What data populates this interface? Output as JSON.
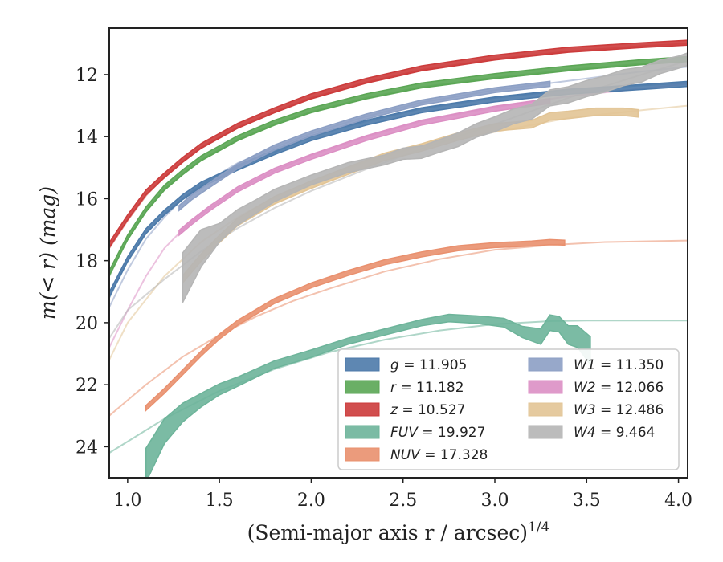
{
  "chart_data": {
    "type": "line",
    "title": "",
    "xlabel": "(Semi-major axis r / arcsec)",
    "xlabel_sup": "1/4",
    "ylabel": "m(< r) (mag)",
    "xlim": [
      0.9,
      4.05
    ],
    "ylim": [
      25.0,
      10.5
    ],
    "y_inverted": true,
    "xticks": [
      "1.0",
      "1.5",
      "2.0",
      "2.5",
      "3.0",
      "3.5",
      "4.0"
    ],
    "xtick_values": [
      1.0,
      1.5,
      2.0,
      2.5,
      3.0,
      3.5,
      4.0
    ],
    "yticks": [
      "12",
      "14",
      "16",
      "18",
      "20",
      "22",
      "24"
    ],
    "ytick_values": [
      12,
      14,
      16,
      18,
      20,
      22,
      24
    ],
    "grid": false,
    "legend_position": "lower-right",
    "legend_columns": 2,
    "series": [
      {
        "name": "g = 11.905",
        "label_var": "g",
        "label_val": "11.905",
        "color": "#4c7aaa",
        "model": {
          "x": [
            0.9,
            1.0,
            1.1,
            1.2,
            1.3,
            1.4,
            1.6,
            1.8,
            2.0,
            2.3,
            2.6,
            3.0,
            3.4,
            3.8,
            4.05
          ],
          "y": [
            19.2,
            18.0,
            17.1,
            16.5,
            16.0,
            15.6,
            15.0,
            14.5,
            14.0,
            13.5,
            13.1,
            12.75,
            12.5,
            12.35,
            12.27
          ]
        },
        "data": {
          "x": [
            0.9,
            1.0,
            1.1,
            1.2,
            1.3,
            1.4,
            1.6,
            1.8,
            2.0,
            2.3,
            2.6,
            3.0,
            3.4,
            3.8,
            4.05
          ],
          "y": [
            19.1,
            17.95,
            17.05,
            16.45,
            15.95,
            15.55,
            15.0,
            14.5,
            14.05,
            13.55,
            13.15,
            12.8,
            12.55,
            12.4,
            12.3
          ],
          "band": 0.08
        }
      },
      {
        "name": "r = 11.182",
        "label_var": "r",
        "label_val": "11.182",
        "color": "#5aa654",
        "model": {
          "x": [
            0.9,
            1.0,
            1.1,
            1.2,
            1.3,
            1.4,
            1.6,
            1.8,
            2.0,
            2.3,
            2.6,
            3.0,
            3.4,
            3.8,
            4.05
          ],
          "y": [
            18.5,
            17.3,
            16.4,
            15.7,
            15.2,
            14.75,
            14.1,
            13.6,
            13.2,
            12.75,
            12.4,
            12.1,
            11.85,
            11.65,
            11.55
          ]
        },
        "data": {
          "x": [
            0.9,
            1.0,
            1.1,
            1.2,
            1.3,
            1.4,
            1.6,
            1.8,
            2.0,
            2.3,
            2.6,
            3.0,
            3.4,
            3.8,
            4.05
          ],
          "y": [
            18.4,
            17.25,
            16.35,
            15.65,
            15.15,
            14.7,
            14.05,
            13.55,
            13.15,
            12.7,
            12.35,
            12.05,
            11.8,
            11.6,
            11.5
          ],
          "band": 0.08
        }
      },
      {
        "name": "z = 10.527",
        "label_var": "z",
        "label_val": "10.527",
        "color": "#cc3b3b",
        "model": {
          "x": [
            0.9,
            1.0,
            1.1,
            1.2,
            1.3,
            1.4,
            1.6,
            1.8,
            2.0,
            2.3,
            2.6,
            3.0,
            3.4,
            3.8,
            4.05
          ],
          "y": [
            17.6,
            16.7,
            15.9,
            15.3,
            14.8,
            14.35,
            13.7,
            13.2,
            12.75,
            12.25,
            11.85,
            11.5,
            11.25,
            11.08,
            11.0
          ]
        },
        "data": {
          "x": [
            0.9,
            1.0,
            1.1,
            1.2,
            1.3,
            1.4,
            1.6,
            1.8,
            2.0,
            2.3,
            2.6,
            3.0,
            3.4,
            3.8,
            4.05
          ],
          "y": [
            17.5,
            16.6,
            15.8,
            15.25,
            14.75,
            14.3,
            13.65,
            13.15,
            12.7,
            12.2,
            11.8,
            11.45,
            11.2,
            11.05,
            10.97
          ],
          "band": 0.08
        }
      },
      {
        "name": "FUV = 19.927",
        "label_var": "FUV",
        "label_val": "19.927",
        "color": "#6db49a",
        "model": {
          "x": [
            0.9,
            1.2,
            1.5,
            1.8,
            2.1,
            2.4,
            2.7,
            3.0,
            3.3,
            3.5,
            3.7,
            4.05
          ],
          "y": [
            24.2,
            23.1,
            22.2,
            21.5,
            20.95,
            20.55,
            20.25,
            20.05,
            19.95,
            19.93,
            19.93,
            19.93
          ]
        },
        "data": {
          "x": [
            1.1,
            1.2,
            1.3,
            1.4,
            1.5,
            1.6,
            1.8,
            2.0,
            2.2,
            2.4,
            2.6,
            2.75,
            2.9,
            3.05,
            3.15,
            3.25,
            3.3,
            3.35,
            3.4,
            3.45,
            3.52
          ],
          "y": [
            24.6,
            23.5,
            22.9,
            22.5,
            22.15,
            21.9,
            21.35,
            21.0,
            20.6,
            20.3,
            20.0,
            19.85,
            19.9,
            20.0,
            20.3,
            20.45,
            20.0,
            20.05,
            20.4,
            20.45,
            20.9
          ],
          "band": [
            0.55,
            0.4,
            0.3,
            0.22,
            0.18,
            0.15,
            0.12,
            0.12,
            0.1,
            0.1,
            0.1,
            0.12,
            0.12,
            0.14,
            0.18,
            0.25,
            0.25,
            0.25,
            0.3,
            0.35,
            0.45
          ]
        }
      },
      {
        "name": "NUV = 17.328",
        "label_var": "NUV",
        "label_val": "17.328",
        "color": "#e9906e",
        "model": {
          "x": [
            0.9,
            1.1,
            1.3,
            1.5,
            1.7,
            1.9,
            2.1,
            2.4,
            2.7,
            3.0,
            3.3,
            3.6,
            4.05
          ],
          "y": [
            23.0,
            22.0,
            21.1,
            20.4,
            19.8,
            19.3,
            18.9,
            18.35,
            17.95,
            17.65,
            17.5,
            17.4,
            17.35
          ]
        },
        "data": {
          "x": [
            1.1,
            1.2,
            1.3,
            1.4,
            1.5,
            1.6,
            1.8,
            2.0,
            2.2,
            2.4,
            2.6,
            2.8,
            3.0,
            3.2,
            3.3,
            3.38
          ],
          "y": [
            22.75,
            22.2,
            21.6,
            21.0,
            20.45,
            20.0,
            19.3,
            18.8,
            18.4,
            18.05,
            17.8,
            17.6,
            17.5,
            17.45,
            17.4,
            17.42
          ],
          "band": 0.08
        }
      },
      {
        "name": "W1 = 11.350",
        "label_var": "W1",
        "label_val": "11.350",
        "color": "#8c9fc4",
        "model": {
          "x": [
            0.9,
            1.0,
            1.1,
            1.2,
            1.3,
            1.4,
            1.6,
            1.8,
            2.0,
            2.3,
            2.6,
            3.0,
            3.4,
            3.8,
            4.05
          ],
          "y": [
            19.5,
            18.3,
            17.3,
            16.6,
            16.0,
            15.55,
            14.85,
            14.35,
            13.9,
            13.35,
            12.9,
            12.5,
            12.2,
            11.9,
            11.75
          ]
        },
        "data": {
          "x": [
            1.28,
            1.35,
            1.45,
            1.6,
            1.8,
            2.0,
            2.3,
            2.6,
            3.0,
            3.3
          ],
          "y": [
            16.3,
            15.95,
            15.55,
            14.95,
            14.35,
            13.9,
            13.35,
            12.9,
            12.5,
            12.3
          ],
          "band": 0.08
        }
      },
      {
        "name": "W2 = 12.066",
        "label_var": "W2",
        "label_val": "12.066",
        "color": "#dc8fc4",
        "model": {
          "x": [
            0.9,
            1.0,
            1.1,
            1.2,
            1.3,
            1.4,
            1.6,
            1.8,
            2.0,
            2.3,
            2.6,
            3.0,
            3.4,
            3.8,
            4.05
          ],
          "y": [
            20.8,
            19.6,
            18.5,
            17.6,
            17.0,
            16.5,
            15.7,
            15.1,
            14.6,
            14.0,
            13.5,
            13.05,
            12.7,
            12.45,
            12.3
          ]
        },
        "data": {
          "x": [
            1.28,
            1.35,
            1.45,
            1.6,
            1.8,
            2.0,
            2.3,
            2.6,
            3.0,
            3.3
          ],
          "y": [
            17.1,
            16.75,
            16.3,
            15.7,
            15.1,
            14.65,
            14.05,
            13.55,
            13.1,
            12.85
          ],
          "band": 0.08
        }
      },
      {
        "name": "W3 = 12.486",
        "label_var": "W3",
        "label_val": "12.486",
        "color": "#e2c495",
        "model": {
          "x": [
            0.9,
            1.0,
            1.2,
            1.4,
            1.6,
            1.8,
            2.0,
            2.3,
            2.6,
            3.0,
            3.4,
            3.8,
            4.05
          ],
          "y": [
            21.2,
            20.0,
            18.5,
            17.4,
            16.6,
            15.95,
            15.45,
            14.8,
            14.3,
            13.85,
            13.4,
            13.15,
            13.0
          ]
        },
        "data": {
          "x": [
            1.3,
            1.4,
            1.5,
            1.6,
            1.8,
            2.0,
            2.2,
            2.4,
            2.6,
            2.8,
            3.0,
            3.2,
            3.3,
            3.4,
            3.55,
            3.7,
            3.78
          ],
          "y": [
            18.6,
            17.9,
            17.3,
            16.75,
            16.05,
            15.55,
            15.1,
            14.65,
            14.35,
            14.0,
            13.7,
            13.6,
            13.35,
            13.3,
            13.2,
            13.2,
            13.25
          ],
          "band": 0.12
        }
      },
      {
        "name": "W4 = 9.464",
        "label_var": "W4",
        "label_val": "9.464",
        "color": "#b5b5b5",
        "model": {
          "x": [
            0.9,
            1.0,
            1.2,
            1.4,
            1.6,
            1.8,
            2.0,
            2.3,
            2.6,
            3.0,
            3.4,
            3.8,
            4.05
          ],
          "y": [
            20.5,
            19.6,
            18.6,
            17.7,
            16.95,
            16.3,
            15.75,
            15.05,
            14.4,
            13.6,
            12.75,
            12.0,
            11.55
          ]
        },
        "data": {
          "x": [
            1.3,
            1.4,
            1.5,
            1.6,
            1.7,
            1.8,
            1.9,
            2.0,
            2.2,
            2.4,
            2.5,
            2.6,
            2.7,
            2.8,
            2.9,
            3.0,
            3.1,
            3.2,
            3.3,
            3.4,
            3.5,
            3.6,
            3.7,
            3.8,
            3.9,
            4.0,
            4.05
          ],
          "y": [
            18.55,
            17.6,
            17.1,
            16.6,
            16.25,
            15.9,
            15.65,
            15.4,
            15.0,
            14.75,
            14.55,
            14.5,
            14.3,
            14.1,
            13.8,
            13.6,
            13.35,
            13.2,
            12.75,
            12.65,
            12.45,
            12.3,
            12.1,
            12.0,
            11.75,
            11.6,
            11.5
          ],
          "band": [
            0.8,
            0.6,
            0.3,
            0.25,
            0.22,
            0.2,
            0.18,
            0.16,
            0.16,
            0.16,
            0.18,
            0.2,
            0.2,
            0.22,
            0.22,
            0.24,
            0.24,
            0.24,
            0.26,
            0.26,
            0.26,
            0.26,
            0.26,
            0.24,
            0.22,
            0.2,
            0.2
          ]
        }
      }
    ]
  }
}
